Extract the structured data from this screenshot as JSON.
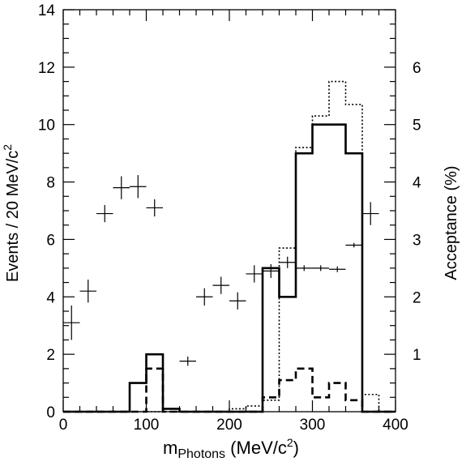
{
  "chart_data": {
    "type": "histogram-with-points",
    "xlabel_main": "m",
    "xlabel_sub": "Photons",
    "xlabel_unit_open": " (MeV/c",
    "xlabel_unit_sup": "2",
    "xlabel_unit_close": ")",
    "ylabel_left_main": "Events / 20 MeV/c",
    "ylabel_left_sup": "2",
    "ylabel_right": "Acceptance (%)",
    "xlim": [
      0,
      400
    ],
    "ylim_left": [
      0,
      14
    ],
    "ylim_right": [
      0,
      7
    ],
    "x_ticks": [
      "0",
      "100",
      "200",
      "300",
      "400"
    ],
    "y_ticks_left": [
      "0",
      "2",
      "4",
      "6",
      "8",
      "10",
      "12",
      "14"
    ],
    "y_ticks_right": [
      "1",
      "2",
      "3",
      "4",
      "5",
      "6"
    ],
    "histograms": [
      {
        "style": "solid",
        "bin_edges": [
          0,
          20,
          40,
          60,
          80,
          100,
          120,
          140,
          160,
          180,
          200,
          220,
          240,
          260,
          280,
          300,
          320,
          340,
          360,
          380,
          400
        ],
        "values": [
          0,
          0,
          0,
          0,
          1,
          2,
          0.1,
          0,
          0,
          0,
          0,
          0,
          5,
          4,
          9,
          10,
          10,
          9,
          0,
          0
        ]
      },
      {
        "style": "dotted",
        "bin_edges": [
          0,
          20,
          40,
          60,
          80,
          100,
          120,
          140,
          160,
          180,
          200,
          220,
          240,
          260,
          280,
          300,
          320,
          340,
          360,
          380,
          400
        ],
        "values": [
          0,
          0,
          0,
          0,
          0,
          0,
          0,
          0,
          0,
          0,
          0.1,
          0.2,
          0.4,
          5.7,
          9.2,
          10.3,
          11.5,
          10.7,
          0.6,
          0
        ]
      },
      {
        "style": "dashed",
        "bin_edges": [
          0,
          20,
          40,
          60,
          80,
          100,
          120,
          140,
          160,
          180,
          200,
          220,
          240,
          260,
          280,
          300,
          320,
          340,
          360,
          380,
          400
        ],
        "values": [
          0,
          0,
          0,
          0,
          0,
          1.5,
          0,
          0,
          0,
          0,
          0,
          0,
          0.5,
          1.1,
          1.5,
          0.5,
          1.0,
          0.4,
          0,
          0
        ]
      }
    ],
    "acceptance_points": [
      {
        "x": 10,
        "y": 1.55,
        "xerr": 10,
        "yerr": 0.3
      },
      {
        "x": 30,
        "y": 2.1,
        "xerr": 10,
        "yerr": 0.2
      },
      {
        "x": 50,
        "y": 3.45,
        "xerr": 10,
        "yerr": 0.15
      },
      {
        "x": 70,
        "y": 3.9,
        "xerr": 10,
        "yerr": 0.2
      },
      {
        "x": 90,
        "y": 3.92,
        "xerr": 10,
        "yerr": 0.2
      },
      {
        "x": 110,
        "y": 3.55,
        "xerr": 10,
        "yerr": 0.15
      },
      {
        "x": 150,
        "y": 0.88,
        "xerr": 10,
        "yerr": 0.08
      },
      {
        "x": 170,
        "y": 2.0,
        "xerr": 10,
        "yerr": 0.15
      },
      {
        "x": 190,
        "y": 2.2,
        "xerr": 10,
        "yerr": 0.15
      },
      {
        "x": 210,
        "y": 1.93,
        "xerr": 10,
        "yerr": 0.15
      },
      {
        "x": 230,
        "y": 2.4,
        "xerr": 10,
        "yerr": 0.15
      },
      {
        "x": 250,
        "y": 2.45,
        "xerr": 10,
        "yerr": 0.12
      },
      {
        "x": 270,
        "y": 2.6,
        "xerr": 10,
        "yerr": 0.1
      },
      {
        "x": 290,
        "y": 2.5,
        "xerr": 10,
        "yerr": 0.05
      },
      {
        "x": 310,
        "y": 2.5,
        "xerr": 10,
        "yerr": 0.05
      },
      {
        "x": 330,
        "y": 2.48,
        "xerr": 10,
        "yerr": 0.05
      },
      {
        "x": 350,
        "y": 2.9,
        "xerr": 10,
        "yerr": 0.04
      },
      {
        "x": 370,
        "y": 3.45,
        "xerr": 10,
        "yerr": 0.2
      }
    ]
  }
}
